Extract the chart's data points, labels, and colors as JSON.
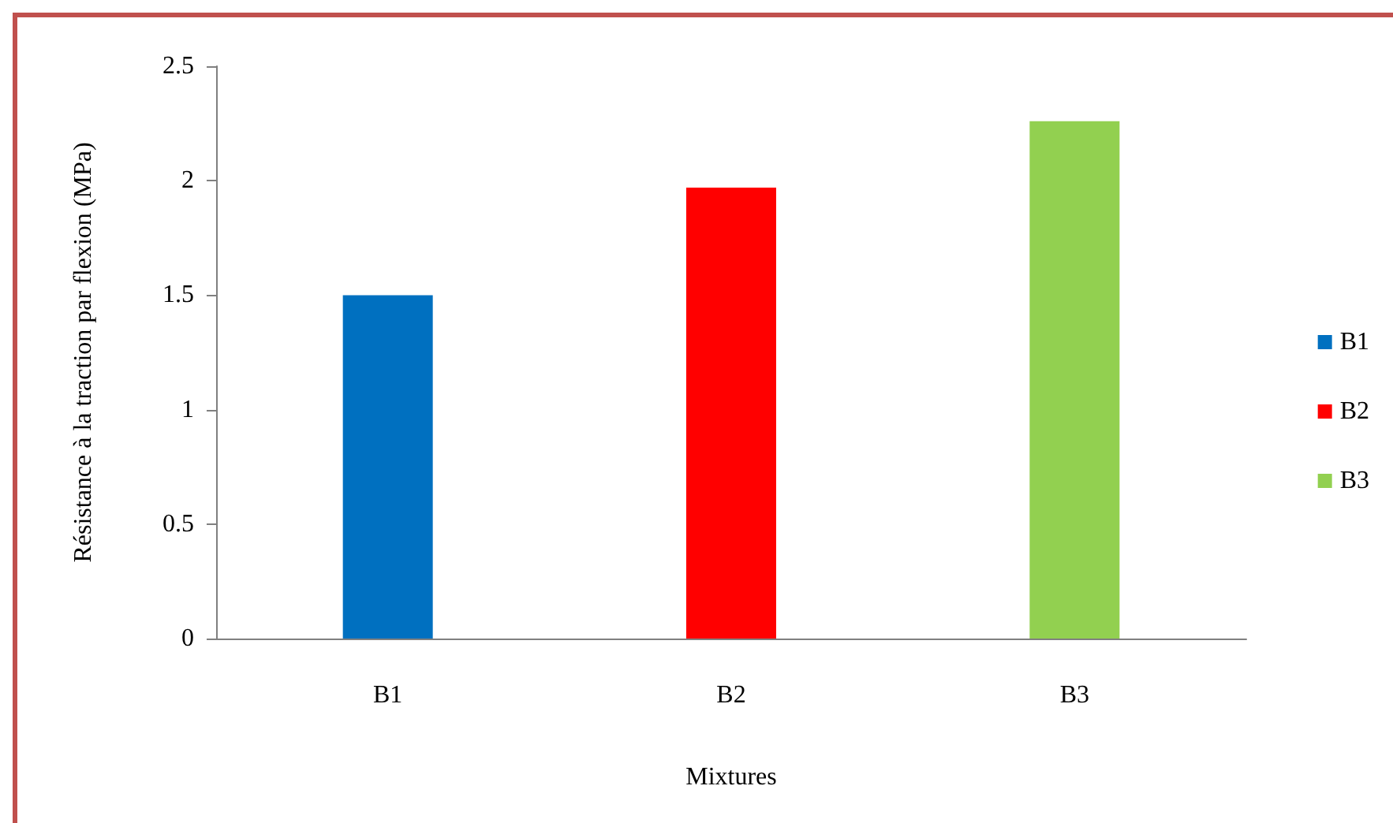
{
  "chart_data": {
    "type": "bar",
    "xlabel": "Mixtures",
    "ylabel": "Résistance à la traction par flexion (MPa)",
    "categories": [
      "B1",
      "B2",
      "B3"
    ],
    "series": [
      {
        "name": "B1",
        "color": "#0070c0",
        "values": [
          1.5,
          null,
          null
        ]
      },
      {
        "name": "B2",
        "color": "#ff0000",
        "values": [
          null,
          1.97,
          null
        ]
      },
      {
        "name": "B3",
        "color": "#92d050",
        "values": [
          null,
          null,
          2.26
        ]
      }
    ],
    "stacked": true,
    "ylim": [
      0,
      2.5
    ],
    "yticks": [
      0,
      0.5,
      1,
      1.5,
      2,
      2.5
    ],
    "grid": false,
    "legend": "right"
  }
}
